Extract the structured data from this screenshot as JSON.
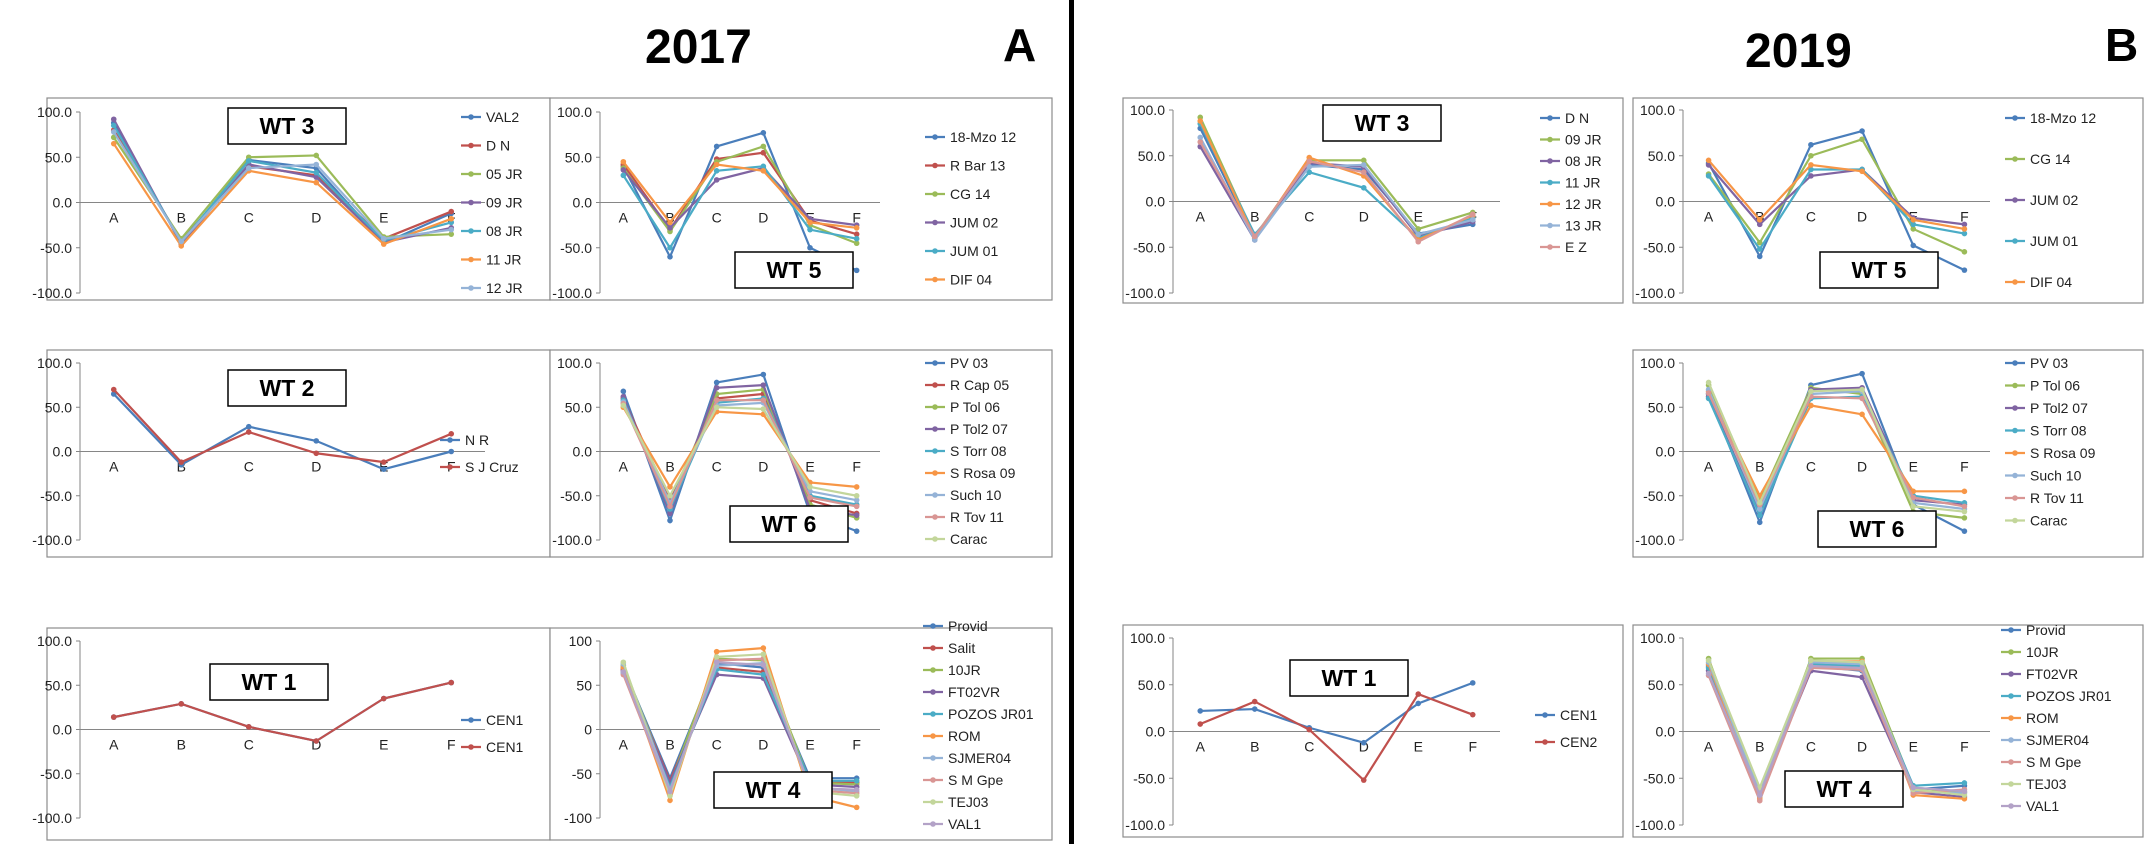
{
  "figure": {
    "panel_a": {
      "year": "2017",
      "letter": "A"
    },
    "panel_b": {
      "year": "2019",
      "letter": "B"
    }
  },
  "chart_data": [
    {
      "id": "a-wt3",
      "type": "line",
      "title": "WT 3",
      "categories": [
        "A",
        "B",
        "C",
        "D",
        "E",
        "F"
      ],
      "yticks": [
        "100.0",
        "50.0",
        "0.0",
        "-50.0",
        "-100.0"
      ],
      "ylim": [
        -100,
        100
      ],
      "series": [
        {
          "name": "VAL2",
          "color": "#4a7ebb",
          "values": [
            88,
            -45,
            47,
            38,
            -45,
            -12
          ]
        },
        {
          "name": "D N",
          "color": "#c0504d",
          "values": [
            80,
            -42,
            40,
            30,
            -40,
            -10
          ]
        },
        {
          "name": "05 JR",
          "color": "#9bbb59",
          "values": [
            72,
            -40,
            50,
            52,
            -38,
            -35
          ]
        },
        {
          "name": "09 JR",
          "color": "#8064a2",
          "values": [
            92,
            -46,
            42,
            28,
            -44,
            -28
          ]
        },
        {
          "name": "08 JR",
          "color": "#4bacc6",
          "values": [
            85,
            -44,
            46,
            33,
            -42,
            -22
          ]
        },
        {
          "name": "11 JR",
          "color": "#f79646",
          "values": [
            65,
            -48,
            35,
            22,
            -46,
            -18
          ]
        },
        {
          "name": "12 JR",
          "color": "#95b3d7",
          "values": [
            78,
            -43,
            38,
            42,
            -40,
            -30
          ]
        }
      ]
    },
    {
      "id": "a-wt5",
      "type": "line",
      "title": "WT 5",
      "categories": [
        "A",
        "B",
        "C",
        "D",
        "E",
        "F"
      ],
      "yticks": [
        "100.0",
        "50.0",
        "0.0",
        "-50.0",
        "-100.0"
      ],
      "ylim": [
        -100,
        100
      ],
      "series": [
        {
          "name": "18-Mzo 12",
          "color": "#4a7ebb",
          "values": [
            40,
            -60,
            62,
            77,
            -50,
            -75
          ]
        },
        {
          "name": "R Bar 13",
          "color": "#c0504d",
          "values": [
            42,
            -30,
            48,
            55,
            -20,
            -35
          ]
        },
        {
          "name": "CG 14",
          "color": "#9bbb59",
          "values": [
            38,
            -32,
            45,
            62,
            -25,
            -45
          ]
        },
        {
          "name": "JUM 02",
          "color": "#8064a2",
          "values": [
            36,
            -28,
            25,
            38,
            -18,
            -25
          ]
        },
        {
          "name": "JUM 01",
          "color": "#4bacc6",
          "values": [
            30,
            -50,
            35,
            40,
            -30,
            -40
          ]
        },
        {
          "name": "DIF 04",
          "color": "#f79646",
          "values": [
            45,
            -22,
            42,
            35,
            -22,
            -28
          ]
        }
      ]
    },
    {
      "id": "a-wt2",
      "type": "line",
      "title": "WT 2",
      "categories": [
        "A",
        "B",
        "C",
        "D",
        "E",
        "F"
      ],
      "yticks": [
        "100.0",
        "50.0",
        "0.0",
        "-50.0",
        "-100.0"
      ],
      "ylim": [
        -100,
        100
      ],
      "series": [
        {
          "name": "N R",
          "color": "#4a7ebb",
          "values": [
            65,
            -15,
            28,
            12,
            -20,
            0
          ]
        },
        {
          "name": "S J Cruz",
          "color": "#c0504d",
          "values": [
            70,
            -12,
            22,
            -2,
            -12,
            20
          ]
        }
      ]
    },
    {
      "id": "a-wt6",
      "type": "line",
      "title": "WT 6",
      "categories": [
        "A",
        "B",
        "C",
        "D",
        "E",
        "F"
      ],
      "yticks": [
        "100.0",
        "50.0",
        "0.0",
        "-50.0",
        "-100.0"
      ],
      "ylim": [
        -100,
        100
      ],
      "series": [
        {
          "name": "PV 03",
          "color": "#4a7ebb",
          "values": [
            68,
            -78,
            78,
            87,
            -70,
            -90
          ]
        },
        {
          "name": "R Cap 05",
          "color": "#c0504d",
          "values": [
            60,
            -55,
            60,
            65,
            -55,
            -70
          ]
        },
        {
          "name": "P Tol 06",
          "color": "#9bbb59",
          "values": [
            55,
            -60,
            65,
            70,
            -60,
            -75
          ]
        },
        {
          "name": "P Tol2 07",
          "color": "#8064a2",
          "values": [
            62,
            -70,
            72,
            75,
            -65,
            -72
          ]
        },
        {
          "name": "S Torr 08",
          "color": "#4bacc6",
          "values": [
            58,
            -65,
            55,
            60,
            -50,
            -60
          ]
        },
        {
          "name": "S Rosa 09",
          "color": "#f79646",
          "values": [
            50,
            -40,
            45,
            42,
            -35,
            -40
          ]
        },
        {
          "name": "Such 10",
          "color": "#95b3d7",
          "values": [
            56,
            -58,
            52,
            55,
            -45,
            -55
          ]
        },
        {
          "name": "R Tov 11",
          "color": "#d99694",
          "values": [
            54,
            -62,
            58,
            58,
            -52,
            -62
          ]
        },
        {
          "name": "Carac",
          "color": "#c3d69b",
          "values": [
            52,
            -50,
            50,
            48,
            -40,
            -50
          ]
        }
      ]
    },
    {
      "id": "a-wt1",
      "type": "line",
      "title": "WT 1",
      "categories": [
        "A",
        "B",
        "C",
        "D",
        "E",
        "F"
      ],
      "yticks": [
        "100.0",
        "50.0",
        "0.0",
        "-50.0",
        "-100.0"
      ],
      "ylim": [
        -100,
        100
      ],
      "series": [
        {
          "name": "CEN1",
          "color": "#4a7ebb",
          "values": [
            14,
            29,
            3,
            -13,
            35,
            53
          ]
        },
        {
          "name": "CEN1",
          "color": "#c0504d",
          "values": [
            14,
            29,
            3,
            -13,
            35,
            53
          ]
        }
      ]
    },
    {
      "id": "a-wt4",
      "type": "line",
      "title": "WT 4",
      "categories": [
        "A",
        "B",
        "C",
        "D",
        "E",
        "F"
      ],
      "yticks": [
        "100",
        "50",
        "0",
        "-50",
        "-100"
      ],
      "ylim": [
        -100,
        100
      ],
      "series": [
        {
          "name": "Provid",
          "color": "#4a7ebb",
          "values": [
            70,
            -55,
            75,
            70,
            -55,
            -55
          ]
        },
        {
          "name": "Salit",
          "color": "#c0504d",
          "values": [
            68,
            -58,
            70,
            65,
            -58,
            -60
          ]
        },
        {
          "name": "10JR",
          "color": "#9bbb59",
          "values": [
            72,
            -62,
            80,
            78,
            -60,
            -62
          ]
        },
        {
          "name": "FT02VR",
          "color": "#8064a2",
          "values": [
            66,
            -60,
            62,
            58,
            -62,
            -65
          ]
        },
        {
          "name": "POZOS JR01",
          "color": "#4bacc6",
          "values": [
            64,
            -65,
            68,
            62,
            -58,
            -58
          ]
        },
        {
          "name": "ROM",
          "color": "#f79646",
          "values": [
            70,
            -80,
            88,
            92,
            -75,
            -88
          ]
        },
        {
          "name": "SJMER04",
          "color": "#95b3d7",
          "values": [
            74,
            -68,
            72,
            75,
            -65,
            -70
          ]
        },
        {
          "name": "S M Gpe",
          "color": "#d99694",
          "values": [
            62,
            -72,
            78,
            80,
            -68,
            -72
          ]
        },
        {
          "name": "TEJ03",
          "color": "#c3d69b",
          "values": [
            76,
            -75,
            82,
            85,
            -70,
            -75
          ]
        },
        {
          "name": "VAL1",
          "color": "#b3a2c7",
          "values": [
            65,
            -70,
            76,
            73,
            -66,
            -68
          ]
        }
      ]
    },
    {
      "id": "b-wt3",
      "type": "line",
      "title": "WT 3",
      "categories": [
        "A",
        "B",
        "C",
        "D",
        "E",
        "F"
      ],
      "yticks": [
        "100.0",
        "50.0",
        "0.0",
        "-50.0",
        "-100.0"
      ],
      "ylim": [
        -100,
        100
      ],
      "series": [
        {
          "name": "D N",
          "color": "#4a7ebb",
          "values": [
            80,
            -40,
            40,
            35,
            -35,
            -25
          ]
        },
        {
          "name": "09 JR",
          "color": "#9bbb59",
          "values": [
            92,
            -38,
            45,
            45,
            -30,
            -12
          ]
        },
        {
          "name": "08 JR",
          "color": "#8064a2",
          "values": [
            60,
            -42,
            42,
            38,
            -38,
            -22
          ]
        },
        {
          "name": "11 JR",
          "color": "#4bacc6",
          "values": [
            85,
            -36,
            32,
            15,
            -40,
            -18
          ]
        },
        {
          "name": "12 JR",
          "color": "#f79646",
          "values": [
            88,
            -40,
            48,
            28,
            -42,
            -15
          ]
        },
        {
          "name": "13 JR",
          "color": "#95b3d7",
          "values": [
            70,
            -42,
            38,
            40,
            -36,
            -20
          ]
        },
        {
          "name": "E Z",
          "color": "#d99694",
          "values": [
            65,
            -38,
            44,
            32,
            -44,
            -14
          ]
        }
      ]
    },
    {
      "id": "b-wt5",
      "type": "line",
      "title": "WT 5",
      "categories": [
        "A",
        "B",
        "C",
        "D",
        "E",
        "F"
      ],
      "yticks": [
        "100.0",
        "50.0",
        "0.0",
        "-50.0",
        "-100.0"
      ],
      "ylim": [
        -100,
        100
      ],
      "series": [
        {
          "name": "18-Mzo 12",
          "color": "#4a7ebb",
          "values": [
            42,
            -60,
            62,
            77,
            -48,
            -75
          ]
        },
        {
          "name": "CG 14",
          "color": "#9bbb59",
          "values": [
            30,
            -45,
            50,
            68,
            -30,
            -55
          ]
        },
        {
          "name": "JUM 02",
          "color": "#8064a2",
          "values": [
            40,
            -25,
            28,
            35,
            -18,
            -25
          ]
        },
        {
          "name": "JUM 01",
          "color": "#4bacc6",
          "values": [
            28,
            -52,
            35,
            35,
            -25,
            -35
          ]
        },
        {
          "name": "DIF 04",
          "color": "#f79646",
          "values": [
            45,
            -20,
            40,
            33,
            -20,
            -30
          ]
        }
      ]
    },
    {
      "id": "b-wt6",
      "type": "line",
      "title": "WT 6",
      "categories": [
        "A",
        "B",
        "C",
        "D",
        "E",
        "F"
      ],
      "yticks": [
        "100.0",
        "50.0",
        "0.0",
        "-50.0",
        "-100.0"
      ],
      "ylim": [
        -100,
        100
      ],
      "series": [
        {
          "name": "PV 03",
          "color": "#4a7ebb",
          "values": [
            65,
            -80,
            75,
            88,
            -60,
            -90
          ]
        },
        {
          "name": "P Tol 06",
          "color": "#9bbb59",
          "values": [
            75,
            -55,
            72,
            65,
            -68,
            -75
          ]
        },
        {
          "name": "P Tol2 07",
          "color": "#8064a2",
          "values": [
            62,
            -70,
            70,
            72,
            -55,
            -60
          ]
        },
        {
          "name": "S Torr 08",
          "color": "#4bacc6",
          "values": [
            60,
            -72,
            60,
            62,
            -50,
            -58
          ]
        },
        {
          "name": "S Rosa 09",
          "color": "#f79646",
          "values": [
            68,
            -50,
            52,
            42,
            -45,
            -45
          ]
        },
        {
          "name": "Such 10",
          "color": "#95b3d7",
          "values": [
            70,
            -65,
            65,
            68,
            -58,
            -65
          ]
        },
        {
          "name": "R Tov 11",
          "color": "#d99694",
          "values": [
            66,
            -60,
            62,
            60,
            -52,
            -62
          ]
        },
        {
          "name": "Carac",
          "color": "#c3d69b",
          "values": [
            78,
            -58,
            68,
            70,
            -62,
            -68
          ]
        }
      ]
    },
    {
      "id": "b-wt1",
      "type": "line",
      "title": "WT 1",
      "categories": [
        "A",
        "B",
        "C",
        "D",
        "E",
        "F"
      ],
      "yticks": [
        "100.0",
        "50.0",
        "0.0",
        "-50.0",
        "-100.0"
      ],
      "ylim": [
        -100,
        100
      ],
      "series": [
        {
          "name": "CEN1",
          "color": "#4a7ebb",
          "values": [
            22,
            24,
            4,
            -12,
            30,
            52
          ]
        },
        {
          "name": "CEN2",
          "color": "#c0504d",
          "values": [
            8,
            32,
            2,
            -52,
            40,
            18
          ]
        }
      ]
    },
    {
      "id": "b-wt4",
      "type": "line",
      "title": "WT 4",
      "categories": [
        "A",
        "B",
        "C",
        "D",
        "E",
        "F"
      ],
      "yticks": [
        "100.0",
        "50.0",
        "0.0",
        "-50.0",
        "-100.0"
      ],
      "ylim": [
        -100,
        100
      ],
      "series": [
        {
          "name": "Provid",
          "color": "#4a7ebb",
          "values": [
            70,
            -65,
            70,
            65,
            -62,
            -58
          ]
        },
        {
          "name": "10JR",
          "color": "#9bbb59",
          "values": [
            78,
            -70,
            78,
            78,
            -60,
            -65
          ]
        },
        {
          "name": "FT02VR",
          "color": "#8064a2",
          "values": [
            65,
            -68,
            65,
            58,
            -65,
            -70
          ]
        },
        {
          "name": "POZOS JR01",
          "color": "#4bacc6",
          "values": [
            68,
            -62,
            72,
            70,
            -58,
            -55
          ]
        },
        {
          "name": "ROM",
          "color": "#f79646",
          "values": [
            72,
            -72,
            75,
            75,
            -68,
            -72
          ]
        },
        {
          "name": "SJMER04",
          "color": "#95b3d7",
          "values": [
            74,
            -66,
            74,
            72,
            -64,
            -66
          ]
        },
        {
          "name": "S M Gpe",
          "color": "#d99694",
          "values": [
            60,
            -74,
            68,
            66,
            -66,
            -62
          ]
        },
        {
          "name": "TEJ03",
          "color": "#c3d69b",
          "values": [
            76,
            -60,
            76,
            74,
            -62,
            -68
          ]
        },
        {
          "name": "VAL1",
          "color": "#b3a2c7",
          "values": [
            62,
            -68,
            70,
            68,
            -60,
            -64
          ]
        }
      ]
    }
  ]
}
